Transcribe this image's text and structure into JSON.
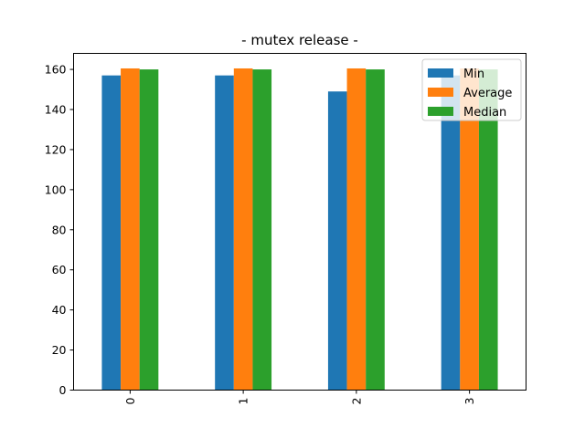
{
  "chart_data": {
    "type": "bar",
    "title": "- mutex release -",
    "xlabel": "",
    "ylabel": "",
    "categories": [
      "0",
      "1",
      "2",
      "3"
    ],
    "ylim": [
      0,
      168
    ],
    "yticks": [
      0,
      20,
      40,
      60,
      80,
      100,
      120,
      140,
      160
    ],
    "grid": false,
    "legend_position": "top-right",
    "series": [
      {
        "name": "Min",
        "color": "#1f77b4",
        "values": [
          157,
          157,
          149,
          157
        ]
      },
      {
        "name": "Average",
        "color": "#ff7f0e",
        "values": [
          160.5,
          160.5,
          160.5,
          160.5
        ]
      },
      {
        "name": "Median",
        "color": "#2ca02c",
        "values": [
          160,
          160,
          160,
          160
        ]
      }
    ]
  }
}
